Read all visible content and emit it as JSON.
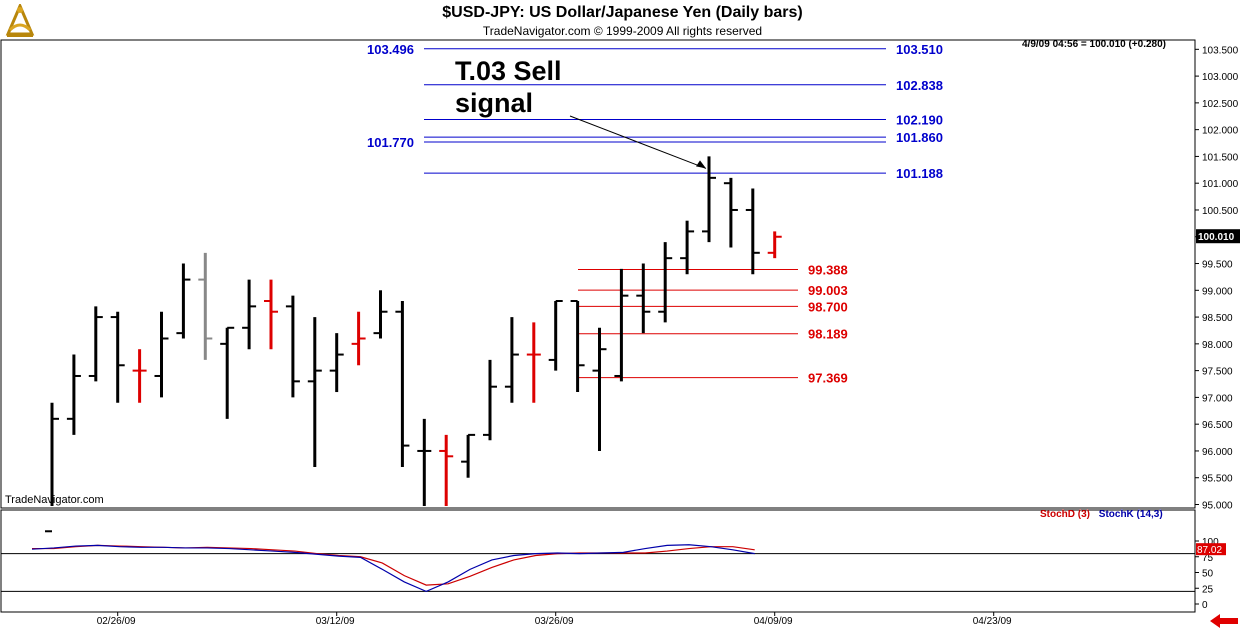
{
  "header": {
    "title": "$USD-JPY:  US Dollar/Japanese Yen  (Daily bars)",
    "subtitle": "TradeNavigator.com © 1999-2009 All rights reserved"
  },
  "watermark": "TradeNavigator.com",
  "quote_readout": "4/9/09 04:56 = 100.010 (+0.280)",
  "annotation": {
    "line1": "T.03 Sell",
    "line2": "signal"
  },
  "logo_icon": "sextant-logo-icon",
  "nav_icon": "red-left-arrow-icon",
  "colors": {
    "blue_level": "#0000cc",
    "red_level": "#dd0000",
    "up_bar": "#000000",
    "highlight_bar": "#dd0000",
    "gray_bar": "#888888",
    "stoch_d": "#cc0000",
    "stoch_k": "#0000aa"
  },
  "chart_data": [
    {
      "type": "ohlc",
      "ylim": [
        94.8,
        103.7
      ],
      "y_ticks": [
        "95.000",
        "95.500",
        "96.000",
        "96.500",
        "97.000",
        "97.500",
        "98.000",
        "98.500",
        "99.000",
        "99.500",
        "100.000",
        "100.500",
        "101.000",
        "101.500",
        "102.000",
        "102.500",
        "103.000",
        "103.500"
      ],
      "x_ticks": [
        {
          "label": "02/26/09",
          "index": 3
        },
        {
          "label": "03/12/09",
          "index": 13
        },
        {
          "label": "03/26/09",
          "index": 23
        },
        {
          "label": "04/09/09",
          "index": 33
        },
        {
          "label": "04/23/09",
          "index": 43
        }
      ],
      "last_price": "100.010",
      "bars": [
        {
          "o": 94.5,
          "h": 96.9,
          "l": 94.5,
          "c": 96.6,
          "color": "black"
        },
        {
          "o": 96.6,
          "h": 97.8,
          "l": 96.3,
          "c": 97.4,
          "color": "black"
        },
        {
          "o": 97.4,
          "h": 98.7,
          "l": 97.3,
          "c": 98.5,
          "color": "black"
        },
        {
          "o": 98.5,
          "h": 98.6,
          "l": 96.9,
          "c": 97.6,
          "color": "black"
        },
        {
          "o": 97.5,
          "h": 97.9,
          "l": 96.9,
          "c": 97.5,
          "color": "red"
        },
        {
          "o": 97.4,
          "h": 98.6,
          "l": 97.0,
          "c": 98.1,
          "color": "black"
        },
        {
          "o": 98.2,
          "h": 99.5,
          "l": 98.1,
          "c": 99.2,
          "color": "black"
        },
        {
          "o": 99.2,
          "h": 99.7,
          "l": 97.7,
          "c": 98.1,
          "color": "gray"
        },
        {
          "o": 98.0,
          "h": 98.3,
          "l": 96.6,
          "c": 98.3,
          "color": "black"
        },
        {
          "o": 98.3,
          "h": 99.2,
          "l": 97.9,
          "c": 98.7,
          "color": "black"
        },
        {
          "o": 98.8,
          "h": 99.2,
          "l": 97.9,
          "c": 98.6,
          "color": "red"
        },
        {
          "o": 98.7,
          "h": 98.9,
          "l": 97.0,
          "c": 97.3,
          "color": "black"
        },
        {
          "o": 97.3,
          "h": 98.5,
          "l": 95.7,
          "c": 97.5,
          "color": "black"
        },
        {
          "o": 97.5,
          "h": 98.2,
          "l": 97.1,
          "c": 97.8,
          "color": "black"
        },
        {
          "o": 98.0,
          "h": 98.6,
          "l": 97.6,
          "c": 98.1,
          "color": "red"
        },
        {
          "o": 98.2,
          "h": 99.0,
          "l": 98.1,
          "c": 98.6,
          "color": "black"
        },
        {
          "o": 98.6,
          "h": 98.8,
          "l": 95.7,
          "c": 96.1,
          "color": "black"
        },
        {
          "o": 96.0,
          "h": 96.6,
          "l": 94.9,
          "c": 96.0,
          "color": "black"
        },
        {
          "o": 96.0,
          "h": 96.3,
          "l": 94.8,
          "c": 95.9,
          "color": "red"
        },
        {
          "o": 95.8,
          "h": 96.3,
          "l": 95.5,
          "c": 96.3,
          "color": "black"
        },
        {
          "o": 96.3,
          "h": 97.7,
          "l": 96.2,
          "c": 97.2,
          "color": "black"
        },
        {
          "o": 97.2,
          "h": 98.5,
          "l": 96.9,
          "c": 97.8,
          "color": "black"
        },
        {
          "o": 97.8,
          "h": 98.4,
          "l": 96.9,
          "c": 97.8,
          "color": "red"
        },
        {
          "o": 97.7,
          "h": 98.8,
          "l": 97.5,
          "c": 98.8,
          "color": "black"
        },
        {
          "o": 98.8,
          "h": 98.8,
          "l": 97.1,
          "c": 97.6,
          "color": "black"
        },
        {
          "o": 97.5,
          "h": 98.3,
          "l": 96.0,
          "c": 97.9,
          "color": "black"
        },
        {
          "o": 97.4,
          "h": 99.4,
          "l": 97.3,
          "c": 98.9,
          "color": "black"
        },
        {
          "o": 98.9,
          "h": 99.5,
          "l": 98.2,
          "c": 98.6,
          "color": "black"
        },
        {
          "o": 98.6,
          "h": 99.9,
          "l": 98.4,
          "c": 99.6,
          "color": "black"
        },
        {
          "o": 99.6,
          "h": 100.3,
          "l": 99.3,
          "c": 100.1,
          "color": "black"
        },
        {
          "o": 100.1,
          "h": 101.5,
          "l": 99.9,
          "c": 101.1,
          "color": "black"
        },
        {
          "o": 101.0,
          "h": 101.1,
          "l": 99.8,
          "c": 100.5,
          "color": "black"
        },
        {
          "o": 100.5,
          "h": 100.9,
          "l": 99.3,
          "c": 99.7,
          "color": "black"
        },
        {
          "o": 99.7,
          "h": 100.1,
          "l": 99.6,
          "c": 100.0,
          "color": "red"
        }
      ],
      "levels_blue": [
        {
          "value": 103.51,
          "label": "103.510",
          "left_label": "103.496"
        },
        {
          "value": 102.838,
          "label": "102.838"
        },
        {
          "value": 102.19,
          "label": "102.190"
        },
        {
          "value": 101.86,
          "label": "101.860"
        },
        {
          "value": 101.77,
          "left_label": "101.770"
        },
        {
          "value": 101.188,
          "label": "101.188"
        }
      ],
      "levels_red": [
        {
          "value": 99.388,
          "label": "99.388"
        },
        {
          "value": 99.003,
          "label": "99.003"
        },
        {
          "value": 98.7,
          "label": "98.700"
        },
        {
          "value": 98.189,
          "label": "98.189"
        },
        {
          "value": 97.369,
          "label": "97.369"
        }
      ],
      "annotation_arrow": {
        "from_text": "T.03 Sell signal",
        "to_bar_index": 30
      }
    },
    {
      "type": "line",
      "ylim": [
        -5,
        110
      ],
      "y_ticks": [
        "0",
        "25",
        "50",
        "75",
        "100"
      ],
      "reference_lines": [
        20,
        80
      ],
      "series": [
        {
          "name": "StochD (3)",
          "color": "#cc0000",
          "values": [
            88,
            88,
            91,
            93,
            92,
            91,
            90,
            89,
            90,
            89,
            88,
            86,
            84,
            80,
            77,
            75,
            65,
            45,
            30,
            32,
            44,
            58,
            70,
            77,
            80,
            81,
            81,
            81,
            81,
            84,
            88,
            91,
            91,
            86
          ]
        },
        {
          "name": "StochK (14,3)",
          "color": "#0000aa",
          "values": [
            87,
            89,
            92,
            93,
            91,
            90,
            90,
            89,
            89,
            88,
            86,
            84,
            82,
            79,
            76,
            74,
            55,
            35,
            20,
            35,
            55,
            70,
            77,
            80,
            81,
            80,
            81,
            82,
            88,
            93,
            94,
            91,
            86,
            80
          ]
        }
      ],
      "last_value": "87.02"
    }
  ]
}
